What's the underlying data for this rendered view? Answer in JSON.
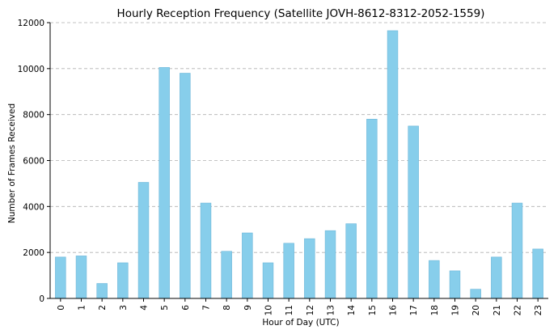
{
  "chart_data": {
    "type": "bar",
    "title": "Hourly Reception Frequency (Satellite JOVH-8612-8312-2052-1559)",
    "xlabel": "Hour of Day (UTC)",
    "ylabel": "Number of Frames Received",
    "categories": [
      "0",
      "1",
      "2",
      "3",
      "4",
      "5",
      "6",
      "7",
      "8",
      "9",
      "10",
      "11",
      "12",
      "13",
      "14",
      "15",
      "16",
      "17",
      "18",
      "19",
      "20",
      "21",
      "22",
      "23"
    ],
    "values": [
      1800,
      1850,
      650,
      1550,
      5050,
      10050,
      9800,
      4150,
      2050,
      2850,
      1550,
      2400,
      2600,
      2950,
      3250,
      7800,
      11650,
      7500,
      1650,
      1200,
      400,
      1800,
      4150,
      2150
    ],
    "ylim": [
      0,
      12000
    ],
    "yticks": [
      0,
      2000,
      4000,
      6000,
      8000,
      10000,
      12000
    ],
    "grid": "y",
    "bar_color": "#87ceeb"
  }
}
